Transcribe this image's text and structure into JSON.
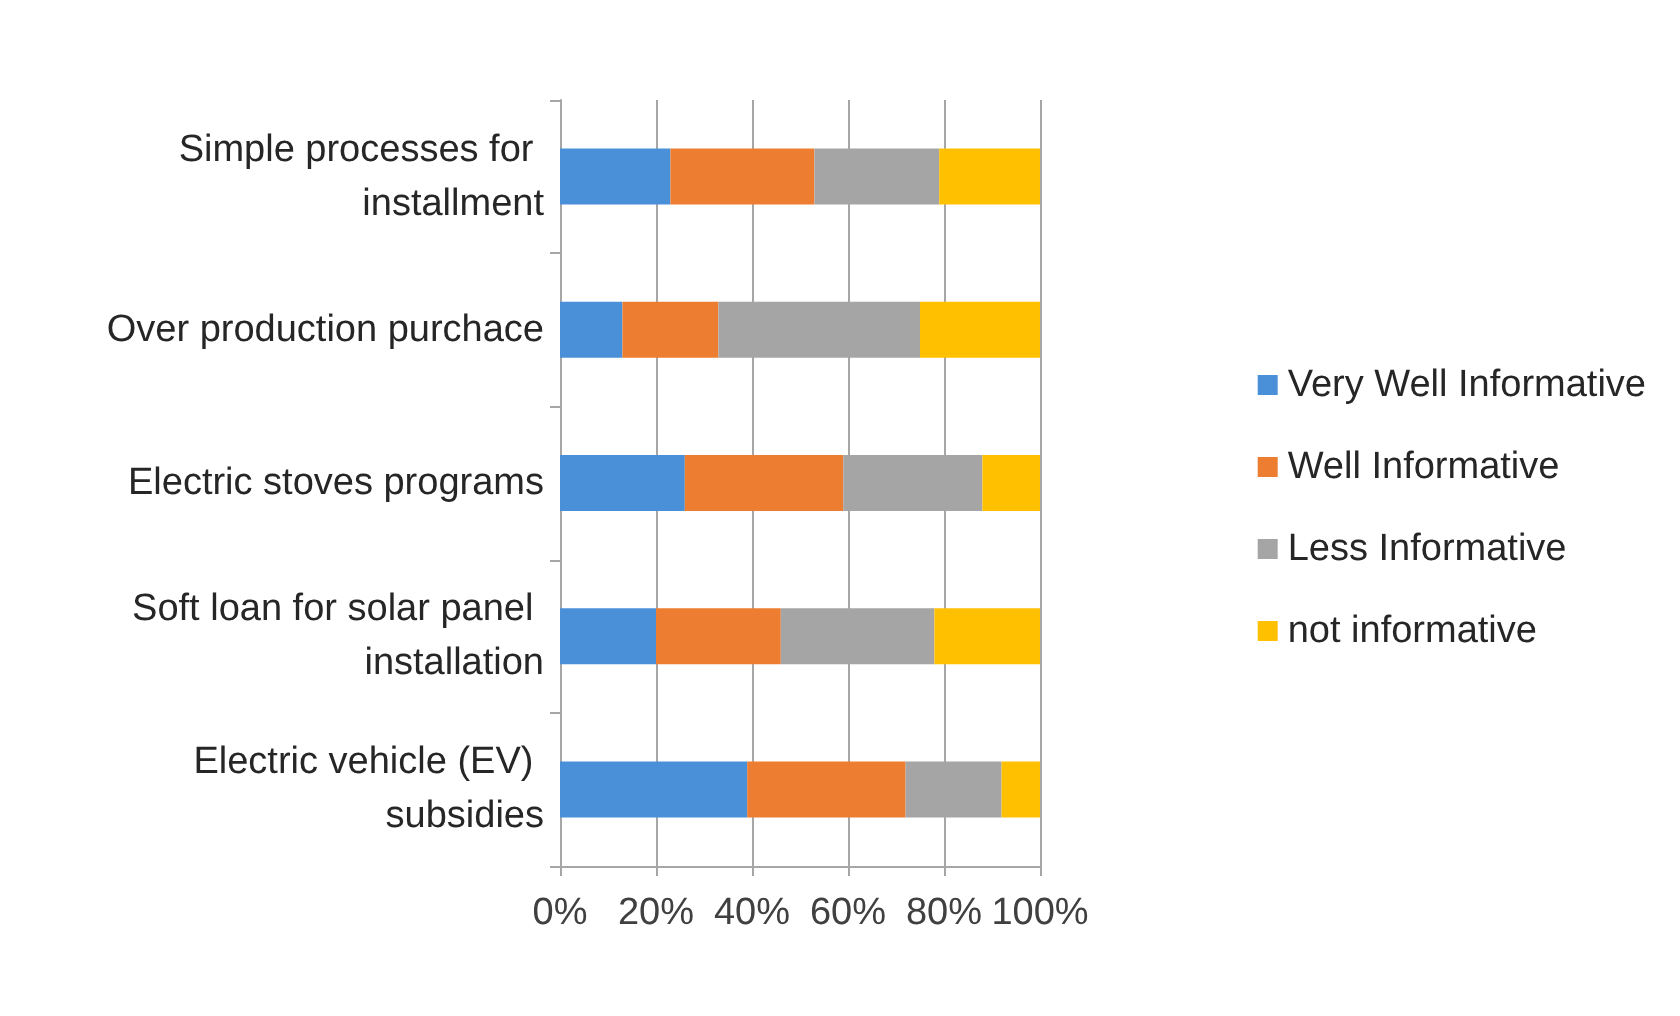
{
  "chart_data": {
    "type": "bar",
    "orientation": "horizontal",
    "stacked": true,
    "categories": [
      "Simple processes for installment",
      "Over production purchace",
      "Electric stoves programs",
      "Soft loan for solar panel installation",
      "Electric vehicle (EV) subsidies"
    ],
    "series": [
      {
        "name": "Very Well Informative",
        "color": "#4a90d9",
        "values": [
          23,
          13,
          26,
          20,
          39
        ]
      },
      {
        "name": "Well Informative",
        "color": "#ed7d31",
        "values": [
          30,
          20,
          33,
          26,
          33
        ]
      },
      {
        "name": "Less Informative",
        "color": "#a5a5a5",
        "values": [
          26,
          42,
          29,
          32,
          20
        ]
      },
      {
        "name": "not informative",
        "color": "#ffc000",
        "values": [
          21,
          25,
          12,
          22,
          8
        ]
      }
    ],
    "xlim": [
      0,
      100
    ],
    "xticks": [
      {
        "value": 0,
        "label": "0%"
      },
      {
        "value": 20,
        "label": "20%"
      },
      {
        "value": 40,
        "label": "40%"
      },
      {
        "value": 60,
        "label": "60%"
      },
      {
        "value": 80,
        "label": "80%"
      },
      {
        "value": 100,
        "label": "100%"
      }
    ],
    "grid": "x",
    "legend": "right"
  }
}
